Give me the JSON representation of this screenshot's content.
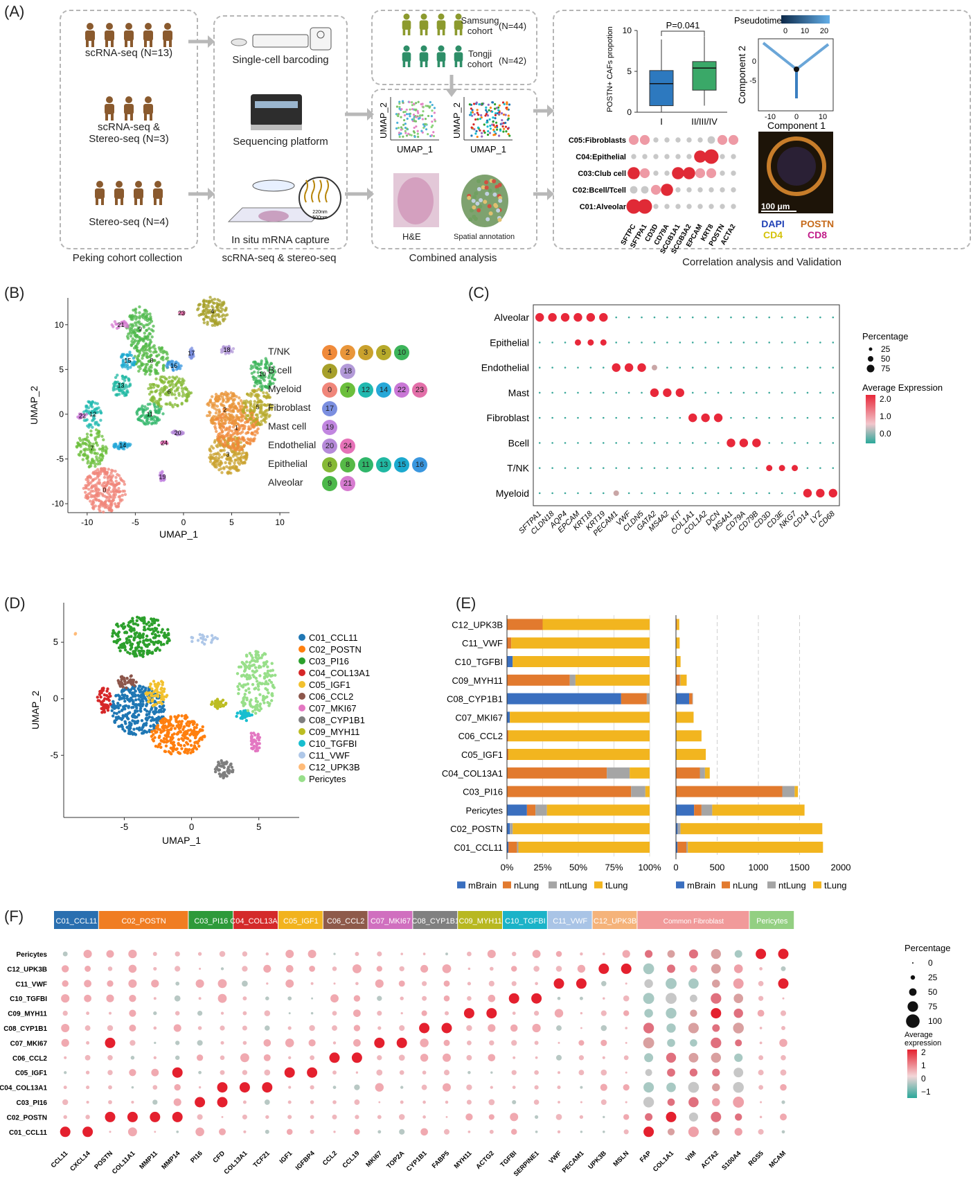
{
  "panelA": {
    "letter": "(A)",
    "cohorts": [
      {
        "label": "scRNA-seq (N=13)",
        "count": 5
      },
      {
        "label": "scRNA-seq &\nStereo-seq (N=3)",
        "count": 3
      },
      {
        "label": "Stereo-seq (N=4)",
        "count": 4
      }
    ],
    "box1_caption": "Peking cohort collection",
    "steps": [
      "Single-cell barcoding",
      "Sequencing platform",
      "In situ mRNA capture"
    ],
    "box2_caption": "scRNA-seq & stereo-seq",
    "inset_220": "220nm",
    "inset_500": "500nm",
    "samsung": "Samsung\ncohort",
    "samsung_n": "(N=44)",
    "tongji": "Tongji\ncohort",
    "tongji_n": "(N=42)",
    "umap_x": "UMAP_1",
    "umap_y": "UMAP_2",
    "he": "H&E",
    "spatial": "Spatial annotation",
    "box3_caption": "Combined analysis",
    "box4_caption": "Correlation analysis and Validation",
    "boxplot": {
      "ylabel": "POSTN+ CAFs propotion",
      "p": "P=0.041",
      "groups": [
        "I",
        "II/III/IV"
      ],
      "yticks": [
        "0",
        "5",
        "10"
      ]
    },
    "pseudotime": {
      "title": "Pseudotime",
      "ticks": [
        "0",
        "10",
        "20"
      ],
      "xlabel": "Component 1",
      "ylabel": "Component 2",
      "xticks": [
        "-10",
        "0",
        "10"
      ],
      "yticks": [
        "0",
        "-5"
      ]
    },
    "dot_rows": [
      "C05:Fibroblasts",
      "C04:Epithelial",
      "C03:Club cell",
      "C02:Bcell/Tcell",
      "C01:Alveolar"
    ],
    "dot_cols": [
      "SFTPC",
      "SFTPA1",
      "CD3D",
      "CD79A",
      "SCGB1A1",
      "SCGB3A2",
      "EPCAM",
      "KRT8",
      "POSTN",
      "ACTA2"
    ],
    "scale": "100 μm",
    "stains": [
      "DAPI",
      "POSTN",
      "CD4",
      "CD8"
    ]
  },
  "panelB": {
    "letter": "(B)",
    "xlabel": "UMAP_1",
    "ylabel": "UMAP_2",
    "xticks": [
      "-10",
      "-5",
      "0",
      "5",
      "10"
    ],
    "yticks": [
      "10",
      "5",
      "0",
      "-5",
      "-10"
    ],
    "legend": [
      {
        "name": "T/NK",
        "ids": [
          "1",
          "2",
          "3",
          "5",
          "10"
        ]
      },
      {
        "name": "B cell",
        "ids": [
          "4",
          "18"
        ]
      },
      {
        "name": "Myeloid",
        "ids": [
          "0",
          "7",
          "12",
          "14",
          "22",
          "23"
        ]
      },
      {
        "name": "Fibroblast",
        "ids": [
          "17"
        ]
      },
      {
        "name": "Mast cell",
        "ids": [
          "19"
        ]
      },
      {
        "name": "Endothelial",
        "ids": [
          "20",
          "24"
        ]
      },
      {
        "name": "Epithelial",
        "ids": [
          "6",
          "8",
          "11",
          "13",
          "15",
          "16"
        ]
      },
      {
        "name": "Alveolar",
        "ids": [
          "9",
          "21"
        ]
      }
    ],
    "badge_colors": {
      "1": "#f08a3a",
      "2": "#e9963a",
      "3": "#c9a12d",
      "5": "#b7aa2b",
      "10": "#3cb45a",
      "4": "#a7a02a",
      "18": "#b39ad8",
      "0": "#f0867a",
      "7": "#6cbf3c",
      "12": "#22b9b0",
      "14": "#27a8d8",
      "22": "#c977d6",
      "23": "#e36fa9",
      "17": "#7b8fe0",
      "19": "#c186e0",
      "20": "#b68ad9",
      "24": "#e672b8",
      "6": "#86b935",
      "8": "#56b947",
      "11": "#30b66a",
      "13": "#20b8a3",
      "15": "#1ca9cf",
      "16": "#3a97df",
      "9": "#4cb84a",
      "21": "#d67bd0"
    }
  },
  "panelC": {
    "letter": "(C)",
    "rows": [
      "Alveolar",
      "Epithelial",
      "Endothelial",
      "Mast",
      "Fibroblast",
      "Bcell",
      "T/NK",
      "Myeloid"
    ],
    "cols": [
      "SFTPA1",
      "CLDN18",
      "AQP4",
      "EPCAM",
      "KRT18",
      "KRT19",
      "PECAM1",
      "VWF",
      "CLDN5",
      "GATA2",
      "MS4A2",
      "KIT",
      "COL1A1",
      "COL1A2",
      "DCN",
      "MS4A1",
      "CD79A",
      "CD79B",
      "CD3D",
      "CD3E",
      "NKG7",
      "CD14",
      "LYZ",
      "CD68"
    ],
    "legend_pct_title": "Percentage",
    "legend_pct": [
      "25",
      "50",
      "75"
    ],
    "legend_expr_title": "Average Expression",
    "legend_expr": [
      "2.0",
      "1.0",
      "0.0"
    ]
  },
  "panelD": {
    "letter": "(D)",
    "xlabel": "UMAP_1",
    "ylabel": "UMAP_2",
    "xticks": [
      "-5",
      "0",
      "5"
    ],
    "yticks": [
      "5",
      "0",
      "-5"
    ],
    "legend": [
      {
        "name": "C01_CCL11",
        "color": "#1f77b4"
      },
      {
        "name": "C02_POSTN",
        "color": "#ff7f0e"
      },
      {
        "name": "C03_PI16",
        "color": "#2ca02c"
      },
      {
        "name": "C04_COL13A1",
        "color": "#d62728"
      },
      {
        "name": "C05_IGF1",
        "color": "#f2c12e"
      },
      {
        "name": "C06_CCL2",
        "color": "#8c564b"
      },
      {
        "name": "C07_MKI67",
        "color": "#e377c2"
      },
      {
        "name": "C08_CYP1B1",
        "color": "#7f7f7f"
      },
      {
        "name": "C09_MYH11",
        "color": "#bcbd22"
      },
      {
        "name": "C10_TGFBI",
        "color": "#17becf"
      },
      {
        "name": "C11_VWF",
        "color": "#aec7e8"
      },
      {
        "name": "C12_UPK3B",
        "color": "#ffbb78"
      },
      {
        "name": "Pericytes",
        "color": "#98df8a"
      }
    ]
  },
  "panelE": {
    "letter": "(E)",
    "categories": [
      "C12_UPK3B",
      "C11_VWF",
      "C10_TGFBI",
      "C09_MYH11",
      "C08_CYP1B1",
      "C07_MKI67",
      "C06_CCL2",
      "C05_IGF1",
      "C04_COL13A1",
      "C03_PI16",
      "Pericytes",
      "C02_POSTN",
      "C01_CCL11"
    ],
    "pct_ticks": [
      "0%",
      "25%",
      "50%",
      "75%",
      "100%"
    ],
    "count_ticks": [
      "0",
      "500",
      "1000",
      "1500",
      "2000"
    ],
    "legend": [
      {
        "name": "mBrain",
        "color": "#3a6fbf"
      },
      {
        "name": "nLung",
        "color": "#e27a2e"
      },
      {
        "name": "ntLung",
        "color": "#a5a5a5"
      },
      {
        "name": "tLung",
        "color": "#f2b51f"
      }
    ]
  },
  "panelF": {
    "letter": "(F)",
    "groups": [
      {
        "name": "C01_CCL11",
        "color": "#2a6fb0",
        "n": 2
      },
      {
        "name": "C02_POSTN",
        "color": "#f07d22",
        "n": 4
      },
      {
        "name": "C03_PI16",
        "color": "#2e9a3a",
        "n": 2
      },
      {
        "name": "C04_COL13A1",
        "color": "#d42a2a",
        "n": 2
      },
      {
        "name": "C05_IGF1",
        "color": "#f2b31e",
        "n": 2
      },
      {
        "name": "C06_CCL2",
        "color": "#8e5a4a",
        "n": 2
      },
      {
        "name": "C07_MKI67",
        "color": "#d06fbf",
        "n": 2
      },
      {
        "name": "C08_CYP1B1",
        "color": "#808080",
        "n": 2
      },
      {
        "name": "C09_MYH11",
        "color": "#b8b820",
        "n": 2
      },
      {
        "name": "C10_TGFBI",
        "color": "#1bb3c8",
        "n": 2
      },
      {
        "name": "C11_VWF",
        "color": "#a9c4e6",
        "n": 2
      },
      {
        "name": "C12_UPK3B",
        "color": "#f5b37a",
        "n": 2
      },
      {
        "name": "Common Fibroblast",
        "color": "#f19a9a",
        "n": 5
      },
      {
        "name": "Pericytes",
        "color": "#93cf82",
        "n": 2
      }
    ],
    "rows": [
      "Pericytes",
      "C12_UPK3B",
      "C11_VWF",
      "C10_TGFBI",
      "C09_MYH11",
      "C08_CYP1B1",
      "C07_MKI67",
      "C06_CCL2",
      "C05_IGF1",
      "C04_COL13A1",
      "C03_PI16",
      "C02_POSTN",
      "C01_CCL11"
    ],
    "cols": [
      "CCL11",
      "CXCL14",
      "POSTN",
      "COL11A1",
      "MMP11",
      "MMP14",
      "PI16",
      "CFD",
      "COL13A1",
      "TCF21",
      "IGF1",
      "IGFBP4",
      "CCL2",
      "CCL19",
      "MKI67",
      "TOP2A",
      "CYP1B1",
      "FABP5",
      "MYH11",
      "ACTG2",
      "TGFBI",
      "SERPINE1",
      "VWF",
      "PECAM1",
      "UPK3B",
      "MSLN",
      "FAP",
      "COL1A1",
      "VIM",
      "ACTA2",
      "S100A4",
      "RGS5",
      "MCAM"
    ],
    "legend_pct_title": "Percentage",
    "legend_pct": [
      "0",
      "25",
      "50",
      "75",
      "100"
    ],
    "legend_expr_title": "Average\nexpression",
    "legend_expr": [
      "2",
      "1",
      "0",
      "−1"
    ]
  },
  "chart_data": [
    {
      "type": "bar",
      "title": "",
      "orientation": "horizontal-stacked-percent",
      "categories": [
        "C12_UPK3B",
        "C11_VWF",
        "C10_TGFBI",
        "C09_MYH11",
        "C08_CYP1B1",
        "C07_MKI67",
        "C06_CCL2",
        "C05_IGF1",
        "C04_COL13A1",
        "C03_PI16",
        "Pericytes",
        "C02_POSTN",
        "C01_CCL11"
      ],
      "series": [
        {
          "name": "mBrain",
          "values": [
            0,
            0,
            4,
            0,
            80,
            2,
            0,
            0,
            0,
            0,
            14,
            2,
            1
          ]
        },
        {
          "name": "nLung",
          "values": [
            25,
            3,
            0,
            44,
            18,
            0,
            1,
            1,
            70,
            87,
            6,
            0,
            6
          ]
        },
        {
          "name": "ntLung",
          "values": [
            0,
            0,
            0,
            4,
            2,
            0,
            0,
            0,
            16,
            10,
            8,
            2,
            1
          ]
        },
        {
          "name": "tLung",
          "values": [
            75,
            97,
            96,
            52,
            0,
            98,
            99,
            99,
            14,
            3,
            72,
            96,
            92
          ]
        }
      ],
      "xlim": [
        0,
        100
      ]
    },
    {
      "type": "bar",
      "title": "",
      "orientation": "horizontal-stacked-count",
      "categories": [
        "C12_UPK3B",
        "C11_VWF",
        "C10_TGFBI",
        "C09_MYH11",
        "C08_CYP1B1",
        "C07_MKI67",
        "C06_CCL2",
        "C05_IGF1",
        "C04_COL13A1",
        "C03_PI16",
        "Pericytes",
        "C02_POSTN",
        "C01_CCL11"
      ],
      "series": [
        {
          "name": "mBrain",
          "values": [
            0,
            0,
            2,
            0,
            160,
            4,
            0,
            0,
            0,
            0,
            220,
            20,
            18
          ]
        },
        {
          "name": "nLung",
          "values": [
            10,
            1,
            0,
            48,
            40,
            0,
            2,
            2,
            290,
            1290,
            90,
            0,
            108
          ]
        },
        {
          "name": "ntLung",
          "values": [
            0,
            0,
            0,
            6,
            6,
            0,
            0,
            0,
            62,
            150,
            130,
            36,
            18
          ]
        },
        {
          "name": "tLung",
          "values": [
            30,
            44,
            54,
            76,
            0,
            210,
            308,
            360,
            58,
            40,
            1120,
            1720,
            1640
          ]
        }
      ],
      "xlim": [
        0,
        2000
      ]
    },
    {
      "type": "box",
      "title": "",
      "categories": [
        "I",
        "II/III/IV"
      ],
      "ylabel": "POSTN+ CAFs propotion",
      "values": [
        {
          "whisker_low": 0,
          "q1": 0.8,
          "median": 3.5,
          "q3": 5.1,
          "whisker_high": 8.9
        },
        {
          "whisker_low": 0.8,
          "q1": 2.7,
          "median": 5.4,
          "q3": 6.2,
          "whisker_high": 9.3
        }
      ],
      "ylim": [
        0,
        10
      ],
      "annotation": "P=0.041"
    }
  ]
}
